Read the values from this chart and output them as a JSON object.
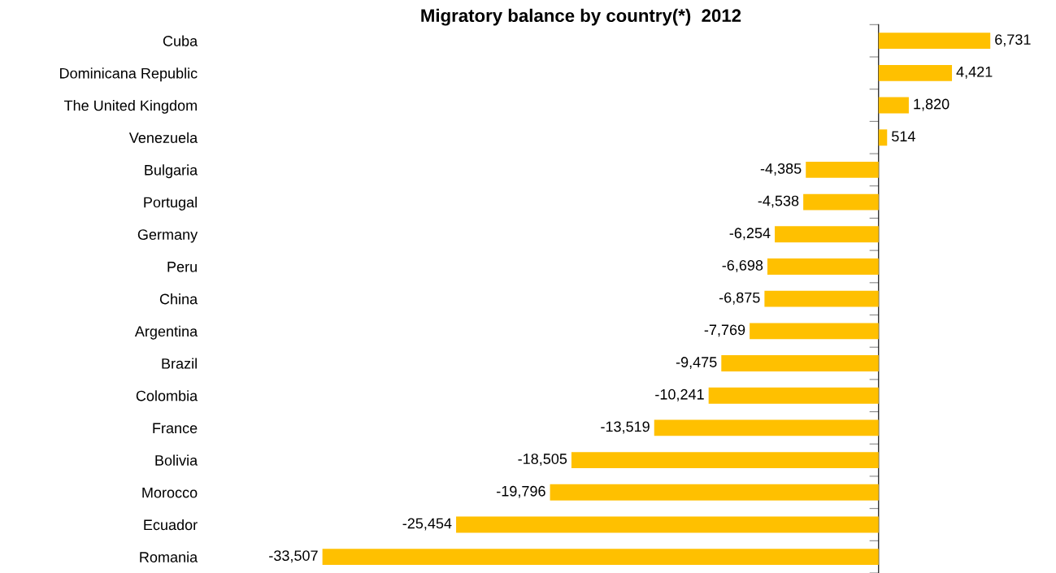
{
  "chart_data": {
    "type": "bar",
    "orientation": "horizontal",
    "title": "Migratory balance by country(*)  2012",
    "categories": [
      "Cuba",
      "Dominicana Republic",
      "The United Kingdom",
      "Venezuela",
      "Bulgaria",
      "Portugal",
      "Germany",
      "Peru",
      "China",
      "Argentina",
      "Brazil",
      "Colombia",
      "France",
      "Bolivia",
      "Morocco",
      "Ecuador",
      "Romania"
    ],
    "values": [
      6731,
      4421,
      1820,
      514,
      -4385,
      -4538,
      -6254,
      -6698,
      -6875,
      -7769,
      -9475,
      -10241,
      -13519,
      -18505,
      -19796,
      -25454,
      -33507
    ],
    "value_labels": [
      "6,731",
      "4,421",
      "1,820",
      "514",
      "-4,385",
      "-4,538",
      "-6,254",
      "-6,698",
      "-6,875",
      "-7,769",
      "-9,475",
      "-10,241",
      "-13,519",
      "-18,505",
      "-19,796",
      "-25,454",
      "-33,507"
    ],
    "color": "#ffc000",
    "tick_labels": "y",
    "grid": false,
    "legend": false
  }
}
